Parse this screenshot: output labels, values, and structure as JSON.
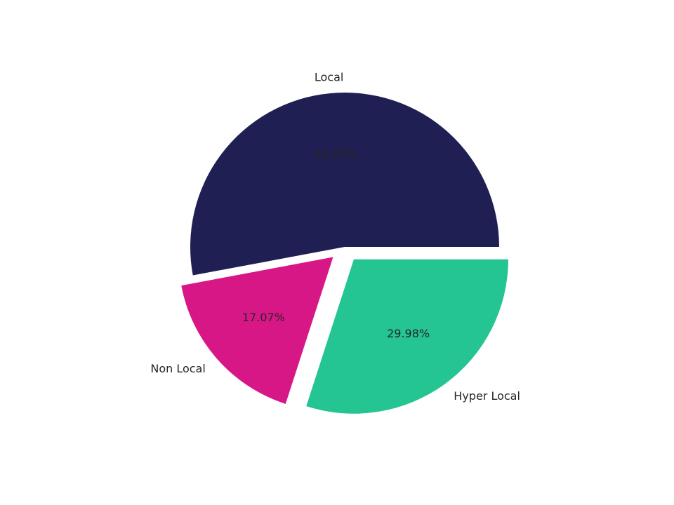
{
  "chart_data": {
    "type": "pie",
    "categories": [
      "Local",
      "Non Local",
      "Hyper Local"
    ],
    "values": [
      52.95,
      17.07,
      29.98
    ],
    "value_labels": [
      "52.95%",
      "17.07%",
      "29.98%"
    ],
    "colors": [
      "#1f1f54",
      "#d81787",
      "#24c592"
    ],
    "explode": [
      0,
      0.1,
      0.1
    ],
    "start_angle": 0
  }
}
